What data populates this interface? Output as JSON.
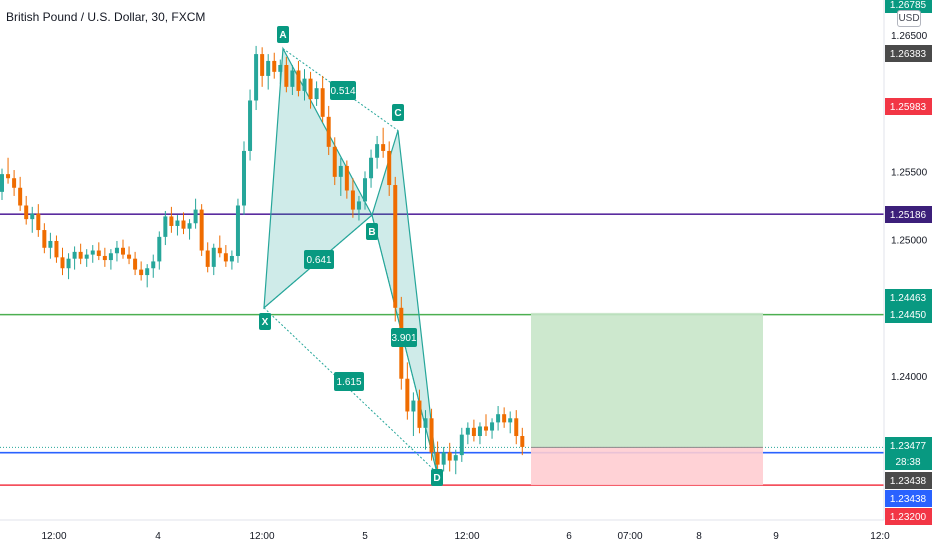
{
  "header": {
    "symbol_title": "British Pound / U.S. Dollar, 30, FXCM",
    "currency": "USD"
  },
  "chart_data": {
    "type": "candlestick",
    "title": "British Pound / U.S. Dollar, 30, FXCM",
    "y_axis_ticks": [
      "1.26500",
      "1.25500",
      "1.25000",
      "1.24000"
    ],
    "x_axis_ticks": [
      "12:00",
      "4",
      "12:00",
      "5",
      "12:00",
      "6",
      "07:00",
      "8",
      "9",
      "12:0"
    ],
    "price_badges": [
      {
        "value": "1.26785",
        "color": "#089981"
      },
      {
        "value": "1.26383",
        "color": "#4a4a4a"
      },
      {
        "value": "1.25983",
        "color": "#f23645"
      },
      {
        "value": "1.25186",
        "color": "#3c1f7a"
      },
      {
        "value": "1.24463",
        "color": "#089981"
      },
      {
        "value": "1.24450",
        "color": "#089981"
      },
      {
        "value": "1.23477",
        "color": "#089981"
      },
      {
        "value": "28:38",
        "color": "#089981"
      },
      {
        "value": "1.23438",
        "color": "#4a4a4a"
      },
      {
        "value": "1.23438",
        "color": "#2962ff"
      },
      {
        "value": "1.23200",
        "color": "#f23645"
      }
    ],
    "horizontal_lines": [
      {
        "price": 1.25186,
        "color": "#5b2c9f"
      },
      {
        "price": 1.2445,
        "color": "#4caf50"
      },
      {
        "price": 1.23438,
        "color": "#2962ff"
      },
      {
        "price": 1.232,
        "color": "#f23645"
      }
    ],
    "harmonic_pattern": {
      "points": [
        {
          "label": "X",
          "price": 1.245
        },
        {
          "label": "A",
          "price": 1.264
        },
        {
          "label": "B",
          "price": 1.2518
        },
        {
          "label": "C",
          "price": 1.258
        },
        {
          "label": "D",
          "price": 1.2329
        }
      ],
      "ratios": [
        "0.641",
        "0.514",
        "3.901",
        "1.615"
      ]
    },
    "position_tool": {
      "entry": 1.23477,
      "target": 1.24463,
      "stop": 1.232,
      "profit_color": "#c8e6c9",
      "loss_color": "#ffcdd2"
    },
    "candles": [
      [
        1.2535,
        1.2552,
        1.2529,
        1.2548
      ],
      [
        1.2548,
        1.256,
        1.2541,
        1.2545
      ],
      [
        1.2545,
        1.2551,
        1.2532,
        1.2538
      ],
      [
        1.2538,
        1.2546,
        1.2521,
        1.2525
      ],
      [
        1.2525,
        1.2532,
        1.2511,
        1.2515
      ],
      [
        1.2515,
        1.2524,
        1.2505,
        1.2519
      ],
      [
        1.2519,
        1.2526,
        1.2502,
        1.2507
      ],
      [
        1.2507,
        1.2512,
        1.249,
        1.2494
      ],
      [
        1.2494,
        1.2505,
        1.2486,
        1.2499
      ],
      [
        1.2499,
        1.2503,
        1.2483,
        1.2487
      ],
      [
        1.2487,
        1.2494,
        1.2474,
        1.2479
      ],
      [
        1.2479,
        1.249,
        1.2471,
        1.2486
      ],
      [
        1.2486,
        1.2495,
        1.2478,
        1.2491
      ],
      [
        1.2491,
        1.2497,
        1.2482,
        1.2486
      ],
      [
        1.2486,
        1.2493,
        1.248,
        1.2489
      ],
      [
        1.2489,
        1.2496,
        1.2483,
        1.2492
      ],
      [
        1.2492,
        1.2498,
        1.2485,
        1.2488
      ],
      [
        1.2488,
        1.2494,
        1.248,
        1.2485
      ],
      [
        1.2485,
        1.2493,
        1.2478,
        1.249
      ],
      [
        1.249,
        1.2499,
        1.2484,
        1.2494
      ],
      [
        1.2494,
        1.25,
        1.2486,
        1.2489
      ],
      [
        1.2489,
        1.2495,
        1.2482,
        1.2486
      ],
      [
        1.2486,
        1.2491,
        1.2474,
        1.2478
      ],
      [
        1.2478,
        1.2484,
        1.247,
        1.2474
      ],
      [
        1.2474,
        1.2482,
        1.2465,
        1.2479
      ],
      [
        1.2479,
        1.2489,
        1.2472,
        1.2484
      ],
      [
        1.2484,
        1.2506,
        1.2478,
        1.2502
      ],
      [
        1.2502,
        1.2521,
        1.2496,
        1.2517
      ],
      [
        1.2517,
        1.2524,
        1.2505,
        1.251
      ],
      [
        1.251,
        1.2518,
        1.2503,
        1.2514
      ],
      [
        1.2514,
        1.252,
        1.2504,
        1.2508
      ],
      [
        1.2508,
        1.2515,
        1.25,
        1.2512
      ],
      [
        1.2512,
        1.253,
        1.2508,
        1.2522
      ],
      [
        1.2522,
        1.2526,
        1.2488,
        1.2492
      ],
      [
        1.2492,
        1.2498,
        1.2476,
        1.248
      ],
      [
        1.248,
        1.2497,
        1.2474,
        1.2494
      ],
      [
        1.2494,
        1.2503,
        1.2487,
        1.249
      ],
      [
        1.249,
        1.2496,
        1.248,
        1.2484
      ],
      [
        1.2484,
        1.2492,
        1.2478,
        1.2488
      ],
      [
        1.2488,
        1.253,
        1.2483,
        1.2525
      ],
      [
        1.2525,
        1.2572,
        1.2518,
        1.2565
      ],
      [
        1.2565,
        1.261,
        1.2558,
        1.2602
      ],
      [
        1.2602,
        1.2642,
        1.2595,
        1.2636
      ],
      [
        1.2636,
        1.2641,
        1.2612,
        1.262
      ],
      [
        1.262,
        1.2636,
        1.261,
        1.2631
      ],
      [
        1.2631,
        1.2637,
        1.2618,
        1.2623
      ],
      [
        1.2623,
        1.2632,
        1.2614,
        1.2628
      ],
      [
        1.2628,
        1.2634,
        1.2608,
        1.2612
      ],
      [
        1.2612,
        1.2628,
        1.2606,
        1.2624
      ],
      [
        1.2624,
        1.2631,
        1.2605,
        1.2609
      ],
      [
        1.2609,
        1.2625,
        1.2602,
        1.2618
      ],
      [
        1.2618,
        1.2623,
        1.2596,
        1.2603
      ],
      [
        1.2603,
        1.2616,
        1.2598,
        1.2611
      ],
      [
        1.2611,
        1.262,
        1.2586,
        1.259
      ],
      [
        1.259,
        1.2598,
        1.2562,
        1.2568
      ],
      [
        1.2568,
        1.2575,
        1.254,
        1.2546
      ],
      [
        1.2546,
        1.256,
        1.2532,
        1.2554
      ],
      [
        1.2554,
        1.2558,
        1.253,
        1.2536
      ],
      [
        1.2536,
        1.2545,
        1.2516,
        1.2522
      ],
      [
        1.2522,
        1.2532,
        1.2514,
        1.2528
      ],
      [
        1.2528,
        1.255,
        1.2522,
        1.2545
      ],
      [
        1.2545,
        1.2566,
        1.2538,
        1.256
      ],
      [
        1.256,
        1.2576,
        1.2552,
        1.257
      ],
      [
        1.257,
        1.2582,
        1.256,
        1.2565
      ],
      [
        1.2565,
        1.2572,
        1.2532,
        1.254
      ],
      [
        1.254,
        1.2546,
        1.244,
        1.245
      ],
      [
        1.245,
        1.2458,
        1.239,
        1.2398
      ],
      [
        1.2398,
        1.241,
        1.2368,
        1.2374
      ],
      [
        1.2374,
        1.2388,
        1.2356,
        1.2382
      ],
      [
        1.2382,
        1.239,
        1.2358,
        1.2362
      ],
      [
        1.2362,
        1.2375,
        1.2346,
        1.2369
      ],
      [
        1.2369,
        1.2376,
        1.2338,
        1.2344
      ],
      [
        1.2344,
        1.2352,
        1.2329,
        1.2335
      ],
      [
        1.2335,
        1.2348,
        1.233,
        1.2344
      ],
      [
        1.2344,
        1.2351,
        1.233,
        1.2338
      ],
      [
        1.2338,
        1.2346,
        1.2328,
        1.2342
      ],
      [
        1.2342,
        1.2362,
        1.2337,
        1.2357
      ],
      [
        1.2357,
        1.2366,
        1.235,
        1.2362
      ],
      [
        1.2362,
        1.2368,
        1.2352,
        1.2356
      ],
      [
        1.2356,
        1.2366,
        1.235,
        1.2363
      ],
      [
        1.2363,
        1.2372,
        1.2356,
        1.236
      ],
      [
        1.236,
        1.2369,
        1.2354,
        1.2366
      ],
      [
        1.2366,
        1.2378,
        1.236,
        1.2372
      ],
      [
        1.2372,
        1.2377,
        1.2362,
        1.2366
      ],
      [
        1.2366,
        1.2374,
        1.2358,
        1.2369
      ],
      [
        1.2369,
        1.2375,
        1.235,
        1.2356
      ],
      [
        1.2356,
        1.2362,
        1.2342,
        1.2348
      ]
    ]
  }
}
